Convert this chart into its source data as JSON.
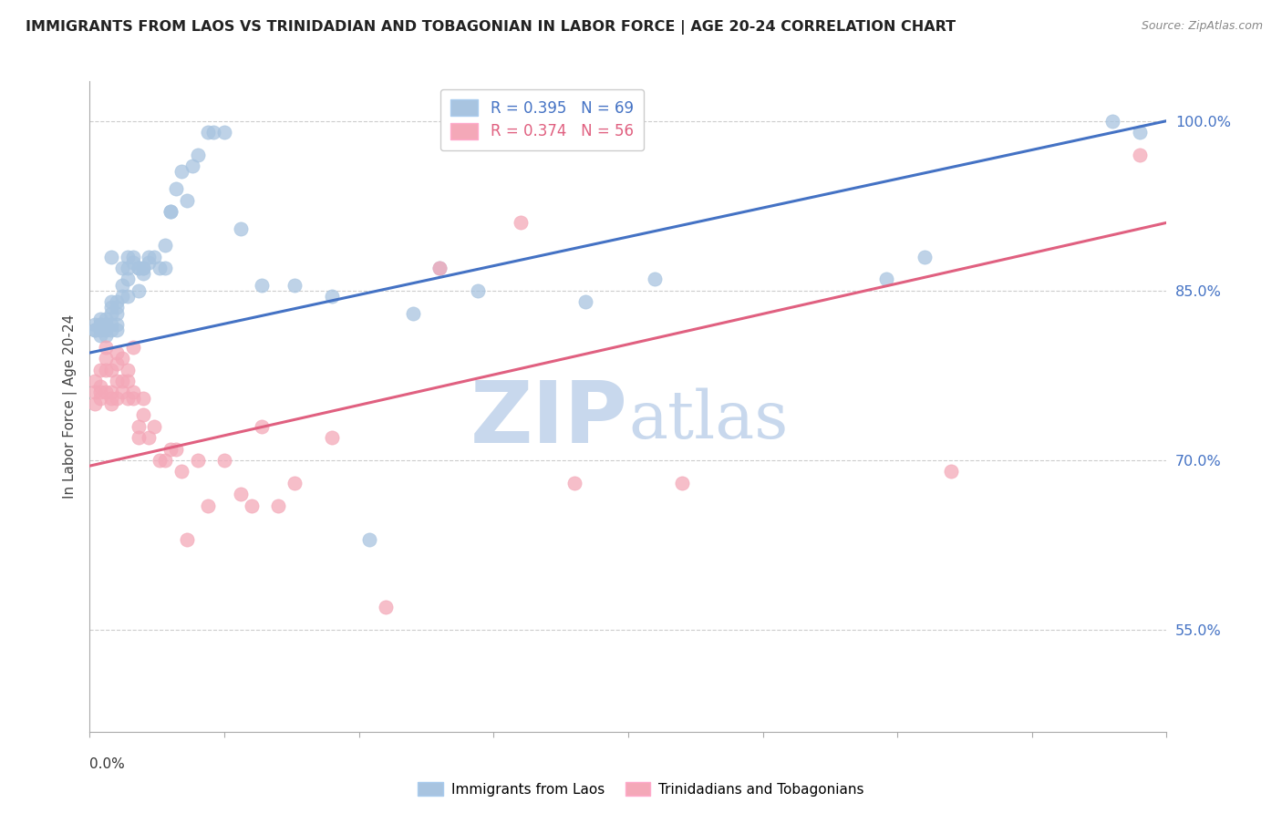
{
  "title": "IMMIGRANTS FROM LAOS VS TRINIDADIAN AND TOBAGONIAN IN LABOR FORCE | AGE 20-24 CORRELATION CHART",
  "source": "Source: ZipAtlas.com",
  "ylabel": "In Labor Force | Age 20-24",
  "xmin": 0.0,
  "xmax": 0.2,
  "ymin": 0.46,
  "ymax": 1.035,
  "blue_R": 0.395,
  "blue_N": 69,
  "pink_R": 0.374,
  "pink_N": 56,
  "blue_color": "#A8C4E0",
  "pink_color": "#F4A8B8",
  "blue_line_color": "#4472C4",
  "pink_line_color": "#E06080",
  "watermark_color": "#C8D8ED",
  "legend_label_blue": "Immigrants from Laos",
  "legend_label_pink": "Trinidadians and Tobagonians",
  "ytick_positions": [
    0.55,
    0.7,
    0.85,
    1.0
  ],
  "ytick_labels": [
    "55.0%",
    "70.0%",
    "85.0%",
    "100.0%"
  ],
  "blue_line_x0": 0.0,
  "blue_line_x1": 0.2,
  "blue_line_y0": 0.795,
  "blue_line_y1": 1.0,
  "pink_line_x0": 0.0,
  "pink_line_x1": 0.2,
  "pink_line_y0": 0.695,
  "pink_line_y1": 0.91,
  "blue_scatter_x": [
    0.001,
    0.001,
    0.001,
    0.002,
    0.002,
    0.002,
    0.002,
    0.002,
    0.003,
    0.003,
    0.003,
    0.003,
    0.003,
    0.004,
    0.004,
    0.004,
    0.004,
    0.004,
    0.004,
    0.005,
    0.005,
    0.005,
    0.005,
    0.005,
    0.006,
    0.006,
    0.006,
    0.007,
    0.007,
    0.007,
    0.007,
    0.008,
    0.008,
    0.009,
    0.009,
    0.009,
    0.01,
    0.01,
    0.01,
    0.011,
    0.011,
    0.012,
    0.013,
    0.014,
    0.014,
    0.015,
    0.015,
    0.016,
    0.017,
    0.018,
    0.019,
    0.02,
    0.022,
    0.023,
    0.025,
    0.028,
    0.032,
    0.038,
    0.045,
    0.052,
    0.06,
    0.065,
    0.072,
    0.092,
    0.105,
    0.148,
    0.155,
    0.19,
    0.195
  ],
  "blue_scatter_y": [
    0.815,
    0.82,
    0.815,
    0.82,
    0.825,
    0.815,
    0.82,
    0.81,
    0.815,
    0.82,
    0.825,
    0.82,
    0.81,
    0.835,
    0.84,
    0.83,
    0.82,
    0.815,
    0.88,
    0.84,
    0.835,
    0.83,
    0.82,
    0.815,
    0.87,
    0.855,
    0.845,
    0.88,
    0.87,
    0.86,
    0.845,
    0.88,
    0.875,
    0.87,
    0.87,
    0.85,
    0.87,
    0.865,
    0.87,
    0.875,
    0.88,
    0.88,
    0.87,
    0.87,
    0.89,
    0.92,
    0.92,
    0.94,
    0.955,
    0.93,
    0.96,
    0.97,
    0.99,
    0.99,
    0.99,
    0.905,
    0.855,
    0.855,
    0.845,
    0.63,
    0.83,
    0.87,
    0.85,
    0.84,
    0.86,
    0.86,
    0.88,
    1.0,
    0.99
  ],
  "pink_scatter_x": [
    0.001,
    0.001,
    0.001,
    0.002,
    0.002,
    0.002,
    0.002,
    0.003,
    0.003,
    0.003,
    0.003,
    0.004,
    0.004,
    0.004,
    0.004,
    0.005,
    0.005,
    0.005,
    0.005,
    0.006,
    0.006,
    0.006,
    0.007,
    0.007,
    0.007,
    0.008,
    0.008,
    0.008,
    0.009,
    0.009,
    0.01,
    0.01,
    0.011,
    0.012,
    0.013,
    0.014,
    0.015,
    0.016,
    0.017,
    0.018,
    0.02,
    0.022,
    0.025,
    0.028,
    0.03,
    0.032,
    0.035,
    0.038,
    0.045,
    0.055,
    0.065,
    0.08,
    0.09,
    0.11,
    0.16,
    0.195
  ],
  "pink_scatter_y": [
    0.77,
    0.76,
    0.75,
    0.76,
    0.755,
    0.765,
    0.78,
    0.79,
    0.78,
    0.76,
    0.8,
    0.76,
    0.755,
    0.75,
    0.78,
    0.755,
    0.77,
    0.785,
    0.795,
    0.79,
    0.77,
    0.76,
    0.78,
    0.77,
    0.755,
    0.76,
    0.755,
    0.8,
    0.73,
    0.72,
    0.755,
    0.74,
    0.72,
    0.73,
    0.7,
    0.7,
    0.71,
    0.71,
    0.69,
    0.63,
    0.7,
    0.66,
    0.7,
    0.67,
    0.66,
    0.73,
    0.66,
    0.68,
    0.72,
    0.57,
    0.87,
    0.91,
    0.68,
    0.68,
    0.69,
    0.97
  ]
}
